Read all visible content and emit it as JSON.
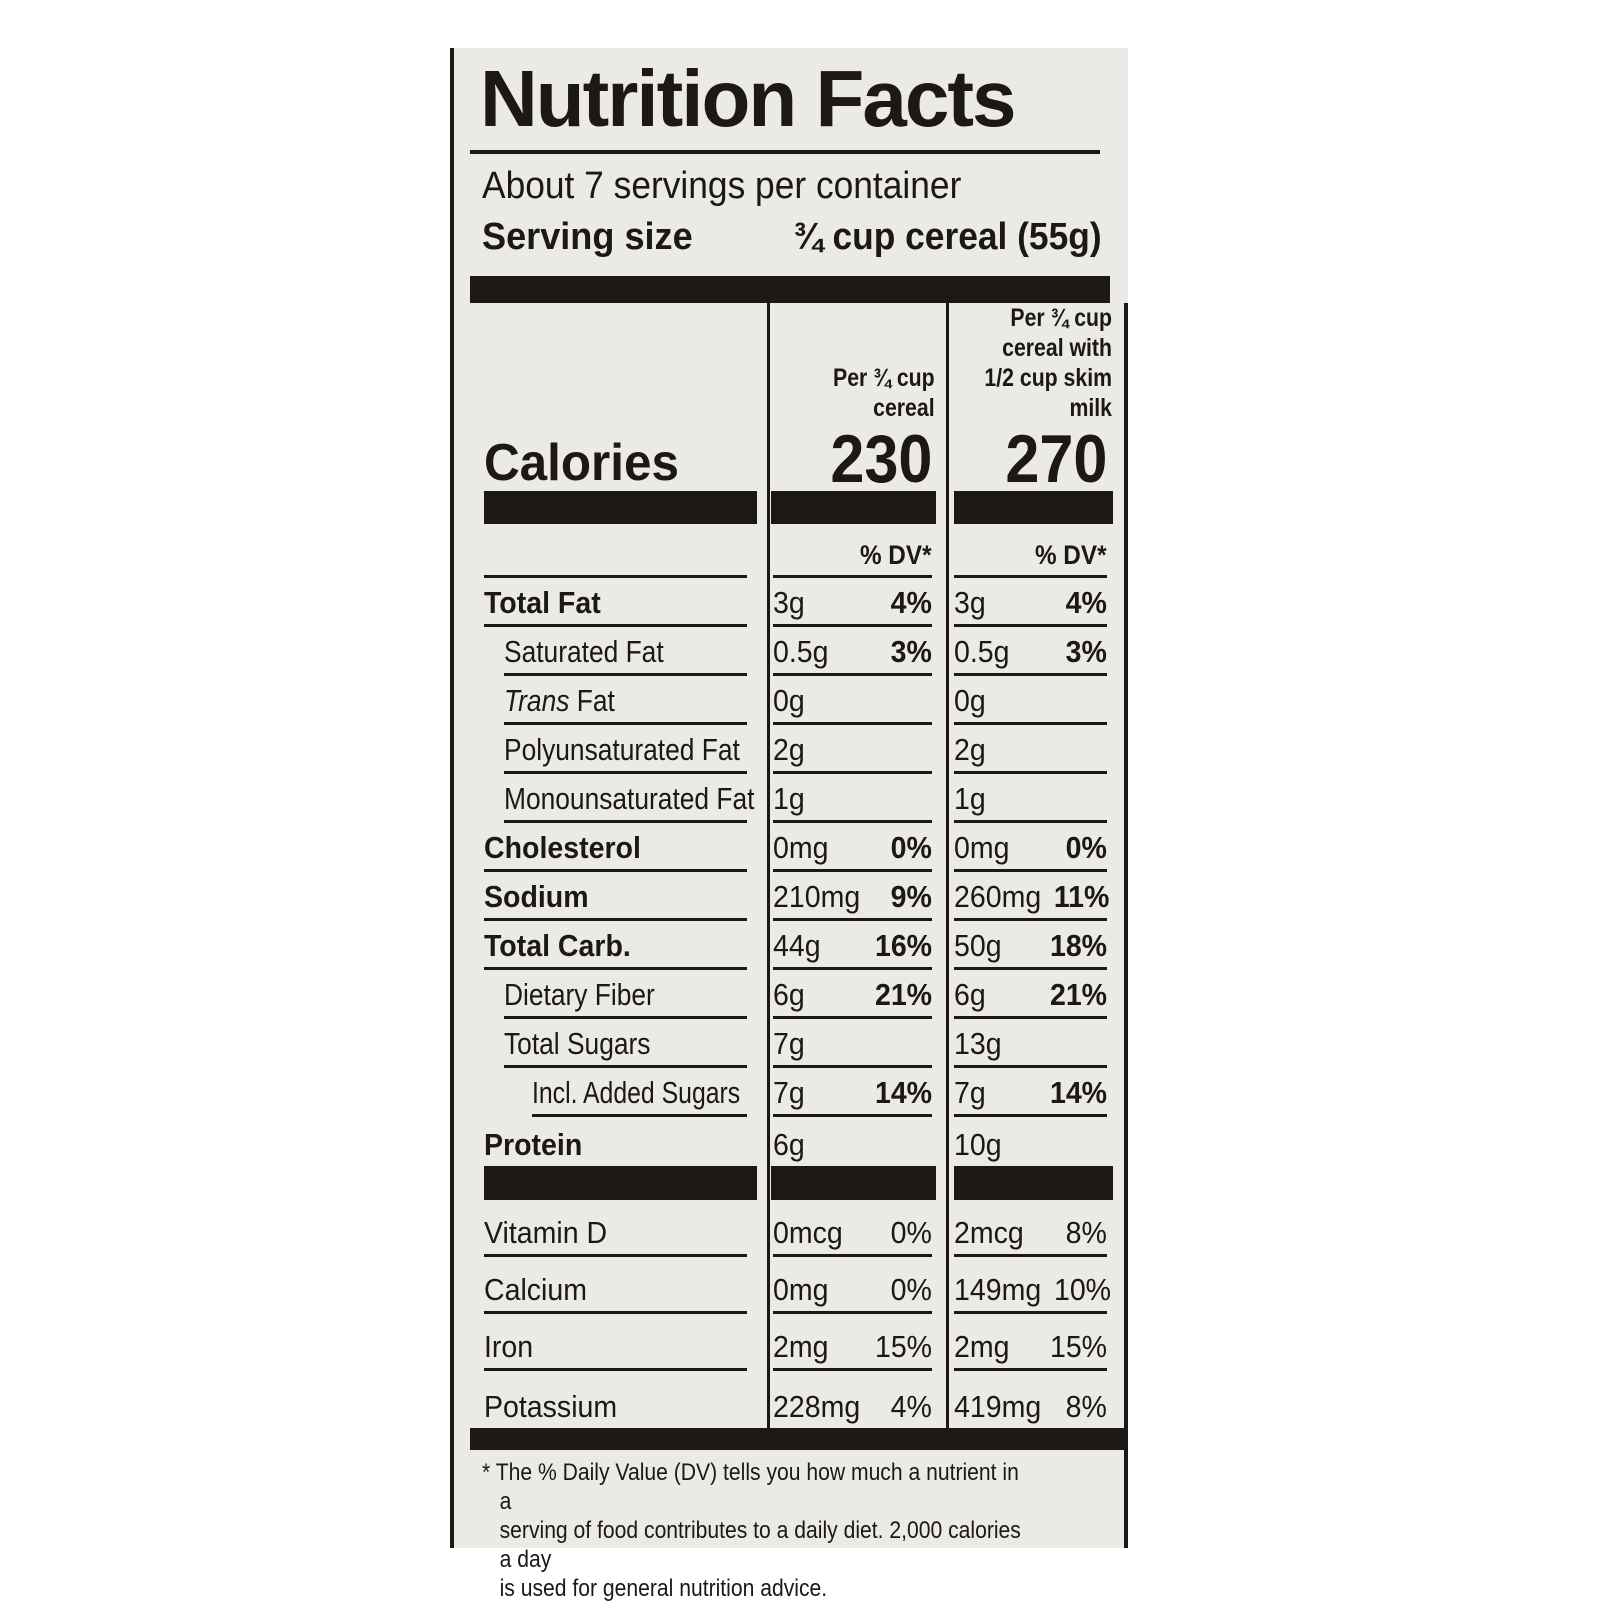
{
  "colors": {
    "label_background": "#eceae6",
    "ink": "#1b1816",
    "page_background": "#ffffff"
  },
  "label": {
    "title": "Nutrition Facts",
    "servings_text": "About 7 servings per container",
    "serving_size": {
      "label": "Serving size",
      "value": "¾ cup cereal (55g)"
    },
    "calories_label": "Calories",
    "columns": {
      "cereal": {
        "header": "Per ¾ cup\ncereal",
        "calories": "230",
        "dv_header": "% DV*"
      },
      "milk": {
        "header": "Per ¾ cup\ncereal with\n1/2 cup skim milk",
        "calories": "270",
        "dv_header": "% DV*"
      }
    },
    "rows": [
      {
        "name": "Total Fat",
        "bold": true,
        "indent": 0,
        "cereal": {
          "amount": "3g",
          "dv": "4%"
        },
        "milk": {
          "amount": "3g",
          "dv": "4%"
        }
      },
      {
        "name": "Saturated Fat",
        "bold": false,
        "indent": 1,
        "cereal": {
          "amount": "0.5g",
          "dv": "3%"
        },
        "milk": {
          "amount": "0.5g",
          "dv": "3%"
        }
      },
      {
        "name": "Trans Fat",
        "bold": false,
        "indent": 1,
        "italic_first": true,
        "cereal": {
          "amount": "0g",
          "dv": ""
        },
        "milk": {
          "amount": "0g",
          "dv": ""
        }
      },
      {
        "name": "Polyunsaturated Fat",
        "bold": false,
        "indent": 1,
        "cereal": {
          "amount": "2g",
          "dv": ""
        },
        "milk": {
          "amount": "2g",
          "dv": ""
        }
      },
      {
        "name": "Monounsaturated Fat",
        "bold": false,
        "indent": 1,
        "cereal": {
          "amount": "1g",
          "dv": ""
        },
        "milk": {
          "amount": "1g",
          "dv": ""
        }
      },
      {
        "name": "Cholesterol",
        "bold": true,
        "indent": 0,
        "cereal": {
          "amount": "0mg",
          "dv": "0%"
        },
        "milk": {
          "amount": "0mg",
          "dv": "0%"
        }
      },
      {
        "name": "Sodium",
        "bold": true,
        "indent": 0,
        "cereal": {
          "amount": "210mg",
          "dv": "9%"
        },
        "milk": {
          "amount": "260mg",
          "dv": "11%"
        }
      },
      {
        "name": "Total Carb.",
        "bold": true,
        "indent": 0,
        "cereal": {
          "amount": "44g",
          "dv": "16%"
        },
        "milk": {
          "amount": "50g",
          "dv": "18%"
        }
      },
      {
        "name": "Dietary Fiber",
        "bold": false,
        "indent": 1,
        "cereal": {
          "amount": "6g",
          "dv": "21%"
        },
        "milk": {
          "amount": "6g",
          "dv": "21%"
        }
      },
      {
        "name": "Total Sugars",
        "bold": false,
        "indent": 1,
        "cereal": {
          "amount": "7g",
          "dv": ""
        },
        "milk": {
          "amount": "13g",
          "dv": ""
        }
      },
      {
        "name": "Incl. Added Sugars",
        "bold": false,
        "indent": 2,
        "cereal": {
          "amount": "7g",
          "dv": "14%"
        },
        "milk": {
          "amount": "7g",
          "dv": "14%"
        }
      },
      {
        "name": "Protein",
        "bold": true,
        "indent": 0,
        "cereal": {
          "amount": "6g",
          "dv": ""
        },
        "milk": {
          "amount": "10g",
          "dv": ""
        }
      }
    ],
    "vitamins": [
      {
        "name": "Vitamin D",
        "cereal": {
          "amount": "0mcg",
          "dv": "0%"
        },
        "milk": {
          "amount": "2mcg",
          "dv": "8%"
        }
      },
      {
        "name": "Calcium",
        "cereal": {
          "amount": "0mg",
          "dv": "0%"
        },
        "milk": {
          "amount": "149mg",
          "dv": "10%"
        }
      },
      {
        "name": "Iron",
        "cereal": {
          "amount": "2mg",
          "dv": "15%"
        },
        "milk": {
          "amount": "2mg",
          "dv": "15%"
        }
      },
      {
        "name": "Potassium",
        "cereal": {
          "amount": "228mg",
          "dv": "4%"
        },
        "milk": {
          "amount": "419mg",
          "dv": "8%"
        }
      }
    ],
    "footnote": "* The % Daily Value (DV) tells you how much a nutrient in a\nserving of food contributes to a daily diet. 2,000 calories a day\nis used for general nutrition advice."
  }
}
